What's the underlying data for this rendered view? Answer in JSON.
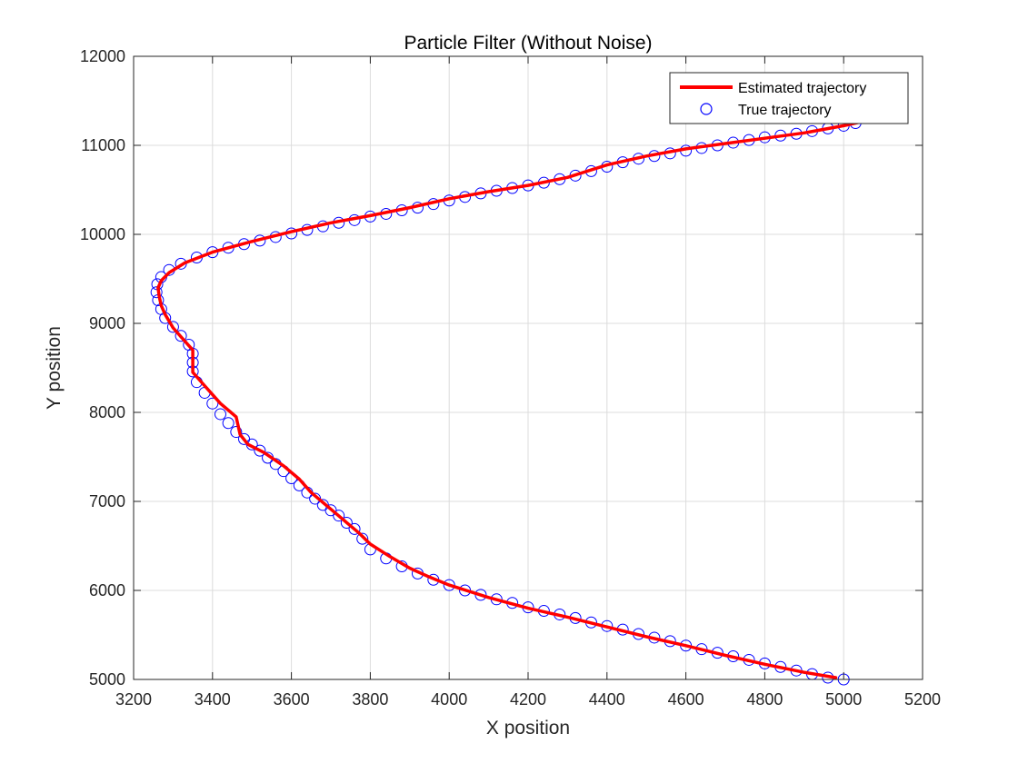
{
  "chart_data": {
    "type": "line",
    "title": "Particle Filter (Without Noise)",
    "xlabel": "X position",
    "ylabel": "Y position",
    "xlim": [
      3200,
      5200
    ],
    "ylim": [
      5000,
      12000
    ],
    "xticks": [
      3200,
      3400,
      3600,
      3800,
      4000,
      4200,
      4400,
      4600,
      4800,
      5000,
      5200
    ],
    "yticks": [
      5000,
      6000,
      7000,
      8000,
      9000,
      10000,
      11000,
      12000
    ],
    "xtick_labels": [
      "3200",
      "3400",
      "3600",
      "3800",
      "4000",
      "4200",
      "4400",
      "4600",
      "4800",
      "5000",
      "5200"
    ],
    "ytick_labels": [
      "5000",
      "6000",
      "7000",
      "8000",
      "9000",
      "10000",
      "11000",
      "12000"
    ],
    "grid": true,
    "legend_position": "top-right",
    "colors": {
      "estimated": "#ff0000",
      "true": "#0000ff",
      "grid": "#dcdcdc",
      "axis": "#262626"
    },
    "series": [
      {
        "name": "Estimated trajectory",
        "style": "line",
        "color": "#ff0000",
        "points": [
          [
            4980,
            5020
          ],
          [
            4900,
            5080
          ],
          [
            4800,
            5170
          ],
          [
            4700,
            5270
          ],
          [
            4600,
            5380
          ],
          [
            4500,
            5480
          ],
          [
            4400,
            5590
          ],
          [
            4300,
            5700
          ],
          [
            4200,
            5800
          ],
          [
            4100,
            5920
          ],
          [
            4000,
            6060
          ],
          [
            3950,
            6150
          ],
          [
            3900,
            6250
          ],
          [
            3850,
            6380
          ],
          [
            3800,
            6520
          ],
          [
            3770,
            6650
          ],
          [
            3730,
            6800
          ],
          [
            3690,
            6950
          ],
          [
            3650,
            7100
          ],
          [
            3620,
            7250
          ],
          [
            3580,
            7400
          ],
          [
            3530,
            7550
          ],
          [
            3490,
            7640
          ],
          [
            3470,
            7750
          ],
          [
            3460,
            7950
          ],
          [
            3420,
            8100
          ],
          [
            3380,
            8300
          ],
          [
            3350,
            8450
          ],
          [
            3350,
            8700
          ],
          [
            3330,
            8800
          ],
          [
            3300,
            8950
          ],
          [
            3280,
            9100
          ],
          [
            3270,
            9200
          ],
          [
            3265,
            9300
          ],
          [
            3262,
            9400
          ],
          [
            3270,
            9480
          ],
          [
            3290,
            9570
          ],
          [
            3330,
            9680
          ],
          [
            3400,
            9800
          ],
          [
            3500,
            9920
          ],
          [
            3600,
            10030
          ],
          [
            3700,
            10130
          ],
          [
            3800,
            10210
          ],
          [
            3900,
            10300
          ],
          [
            4000,
            10400
          ],
          [
            4100,
            10480
          ],
          [
            4200,
            10550
          ],
          [
            4300,
            10640
          ],
          [
            4400,
            10780
          ],
          [
            4500,
            10880
          ],
          [
            4600,
            10960
          ],
          [
            4700,
            11020
          ],
          [
            4800,
            11080
          ],
          [
            4900,
            11140
          ],
          [
            5000,
            11220
          ],
          [
            5040,
            11260
          ]
        ]
      },
      {
        "name": "True trajectory",
        "style": "markers",
        "color": "#0000ff",
        "points": [
          [
            5000,
            5000
          ],
          [
            4960,
            5020
          ],
          [
            4920,
            5060
          ],
          [
            4880,
            5100
          ],
          [
            4840,
            5140
          ],
          [
            4800,
            5180
          ],
          [
            4760,
            5220
          ],
          [
            4720,
            5260
          ],
          [
            4680,
            5300
          ],
          [
            4640,
            5340
          ],
          [
            4600,
            5380
          ],
          [
            4560,
            5430
          ],
          [
            4520,
            5470
          ],
          [
            4480,
            5510
          ],
          [
            4440,
            5560
          ],
          [
            4400,
            5600
          ],
          [
            4360,
            5640
          ],
          [
            4320,
            5690
          ],
          [
            4280,
            5730
          ],
          [
            4240,
            5770
          ],
          [
            4200,
            5810
          ],
          [
            4160,
            5860
          ],
          [
            4120,
            5900
          ],
          [
            4080,
            5950
          ],
          [
            4040,
            6000
          ],
          [
            4000,
            6060
          ],
          [
            3960,
            6120
          ],
          [
            3920,
            6190
          ],
          [
            3880,
            6270
          ],
          [
            3840,
            6360
          ],
          [
            3800,
            6460
          ],
          [
            3780,
            6580
          ],
          [
            3760,
            6690
          ],
          [
            3740,
            6760
          ],
          [
            3720,
            6840
          ],
          [
            3700,
            6900
          ],
          [
            3680,
            6960
          ],
          [
            3660,
            7030
          ],
          [
            3640,
            7100
          ],
          [
            3620,
            7180
          ],
          [
            3600,
            7260
          ],
          [
            3580,
            7340
          ],
          [
            3560,
            7420
          ],
          [
            3540,
            7490
          ],
          [
            3520,
            7570
          ],
          [
            3500,
            7640
          ],
          [
            3480,
            7700
          ],
          [
            3460,
            7780
          ],
          [
            3440,
            7880
          ],
          [
            3420,
            7980
          ],
          [
            3400,
            8100
          ],
          [
            3380,
            8220
          ],
          [
            3360,
            8340
          ],
          [
            3350,
            8460
          ],
          [
            3350,
            8560
          ],
          [
            3350,
            8660
          ],
          [
            3340,
            8760
          ],
          [
            3320,
            8860
          ],
          [
            3300,
            8960
          ],
          [
            3280,
            9060
          ],
          [
            3270,
            9160
          ],
          [
            3262,
            9260
          ],
          [
            3258,
            9350
          ],
          [
            3260,
            9440
          ],
          [
            3270,
            9520
          ],
          [
            3290,
            9600
          ],
          [
            3320,
            9670
          ],
          [
            3360,
            9740
          ],
          [
            3400,
            9800
          ],
          [
            3440,
            9850
          ],
          [
            3480,
            9890
          ],
          [
            3520,
            9930
          ],
          [
            3560,
            9970
          ],
          [
            3600,
            10010
          ],
          [
            3640,
            10050
          ],
          [
            3680,
            10090
          ],
          [
            3720,
            10130
          ],
          [
            3760,
            10160
          ],
          [
            3800,
            10200
          ],
          [
            3840,
            10230
          ],
          [
            3880,
            10270
          ],
          [
            3920,
            10300
          ],
          [
            3960,
            10340
          ],
          [
            4000,
            10380
          ],
          [
            4040,
            10420
          ],
          [
            4080,
            10460
          ],
          [
            4120,
            10490
          ],
          [
            4160,
            10520
          ],
          [
            4200,
            10550
          ],
          [
            4240,
            10580
          ],
          [
            4280,
            10620
          ],
          [
            4320,
            10660
          ],
          [
            4360,
            10710
          ],
          [
            4400,
            10760
          ],
          [
            4440,
            10810
          ],
          [
            4480,
            10850
          ],
          [
            4520,
            10880
          ],
          [
            4560,
            10910
          ],
          [
            4600,
            10940
          ],
          [
            4640,
            10970
          ],
          [
            4680,
            11000
          ],
          [
            4720,
            11030
          ],
          [
            4760,
            11060
          ],
          [
            4800,
            11090
          ],
          [
            4840,
            11110
          ],
          [
            4880,
            11130
          ],
          [
            4920,
            11160
          ],
          [
            4960,
            11190
          ],
          [
            5000,
            11220
          ],
          [
            5030,
            11250
          ]
        ]
      }
    ]
  }
}
